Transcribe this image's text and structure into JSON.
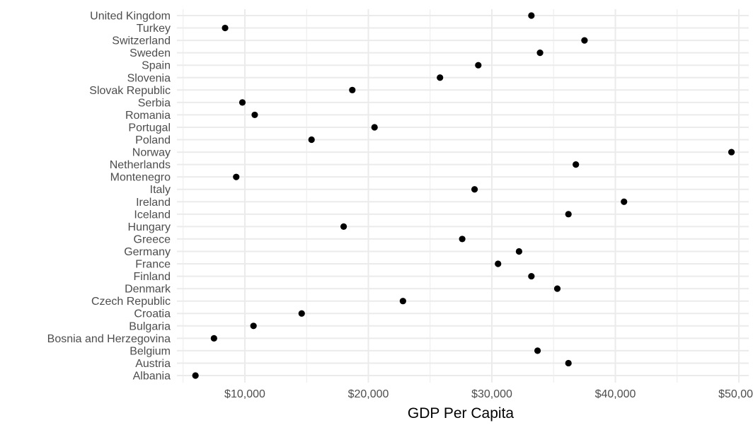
{
  "chart_data": {
    "type": "scatter",
    "xlabel": "GDP Per Capita",
    "ylabel": "",
    "xlim": [
      4500,
      50800
    ],
    "x_ticks": [
      10000,
      20000,
      30000,
      40000,
      50000
    ],
    "x_tick_labels": [
      "$10,000",
      "$20,000",
      "$30,000",
      "$40,000",
      "$50,000"
    ],
    "grid": true,
    "categories": [
      "Albania",
      "Austria",
      "Belgium",
      "Bosnia and Herzegovina",
      "Bulgaria",
      "Croatia",
      "Czech Republic",
      "Denmark",
      "Finland",
      "France",
      "Germany",
      "Greece",
      "Hungary",
      "Iceland",
      "Ireland",
      "Italy",
      "Montenegro",
      "Netherlands",
      "Norway",
      "Poland",
      "Portugal",
      "Romania",
      "Serbia",
      "Slovak Republic",
      "Slovenia",
      "Spain",
      "Sweden",
      "Switzerland",
      "Turkey",
      "United Kingdom"
    ],
    "values": [
      6000,
      36200,
      33700,
      7500,
      10700,
      14600,
      22800,
      35300,
      33200,
      30500,
      32200,
      27600,
      18000,
      36200,
      40700,
      28600,
      9300,
      36800,
      49400,
      15400,
      20500,
      10800,
      9800,
      18700,
      25800,
      28900,
      33900,
      37500,
      8400,
      33200
    ],
    "colors": {
      "point": "#000000",
      "grid": "#ebebeb",
      "label": "#4d4d4d"
    }
  }
}
